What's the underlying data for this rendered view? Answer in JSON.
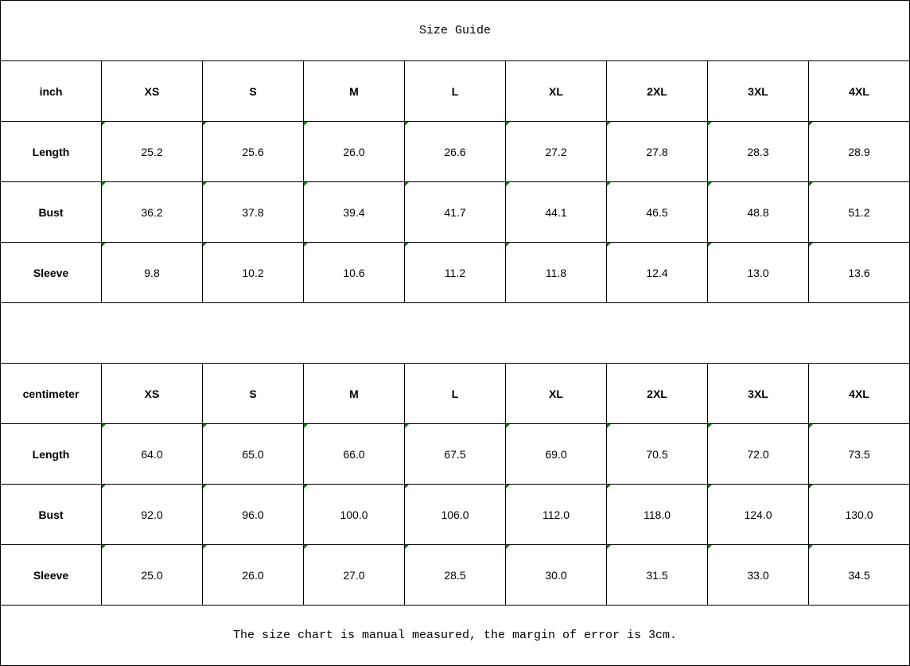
{
  "title": "Size Guide",
  "sizes": [
    "XS",
    "S",
    "M",
    "L",
    "XL",
    "2XL",
    "3XL",
    "4XL"
  ],
  "tables": [
    {
      "unit": "inch",
      "rows": [
        {
          "label": "Length",
          "values": [
            "25.2",
            "25.6",
            "26.0",
            "26.6",
            "27.2",
            "27.8",
            "28.3",
            "28.9"
          ]
        },
        {
          "label": "Bust",
          "values": [
            "36.2",
            "37.8",
            "39.4",
            "41.7",
            "44.1",
            "46.5",
            "48.8",
            "51.2"
          ]
        },
        {
          "label": "Sleeve",
          "values": [
            "9.8",
            "10.2",
            "10.6",
            "11.2",
            "11.8",
            "12.4",
            "13.0",
            "13.6"
          ]
        }
      ]
    },
    {
      "unit": "centimeter",
      "rows": [
        {
          "label": "Length",
          "values": [
            "64.0",
            "65.0",
            "66.0",
            "67.5",
            "69.0",
            "70.5",
            "72.0",
            "73.5"
          ]
        },
        {
          "label": "Bust",
          "values": [
            "92.0",
            "96.0",
            "100.0",
            "106.0",
            "112.0",
            "118.0",
            "124.0",
            "130.0"
          ]
        },
        {
          "label": "Sleeve",
          "values": [
            "25.0",
            "26.0",
            "27.0",
            "28.5",
            "30.0",
            "31.5",
            "33.0",
            "34.5"
          ]
        }
      ]
    }
  ],
  "note": "The size chart is manual measured, the margin of error is 3cm.",
  "colors": {
    "border": "#000000",
    "indicator": "#0a7a0a"
  }
}
